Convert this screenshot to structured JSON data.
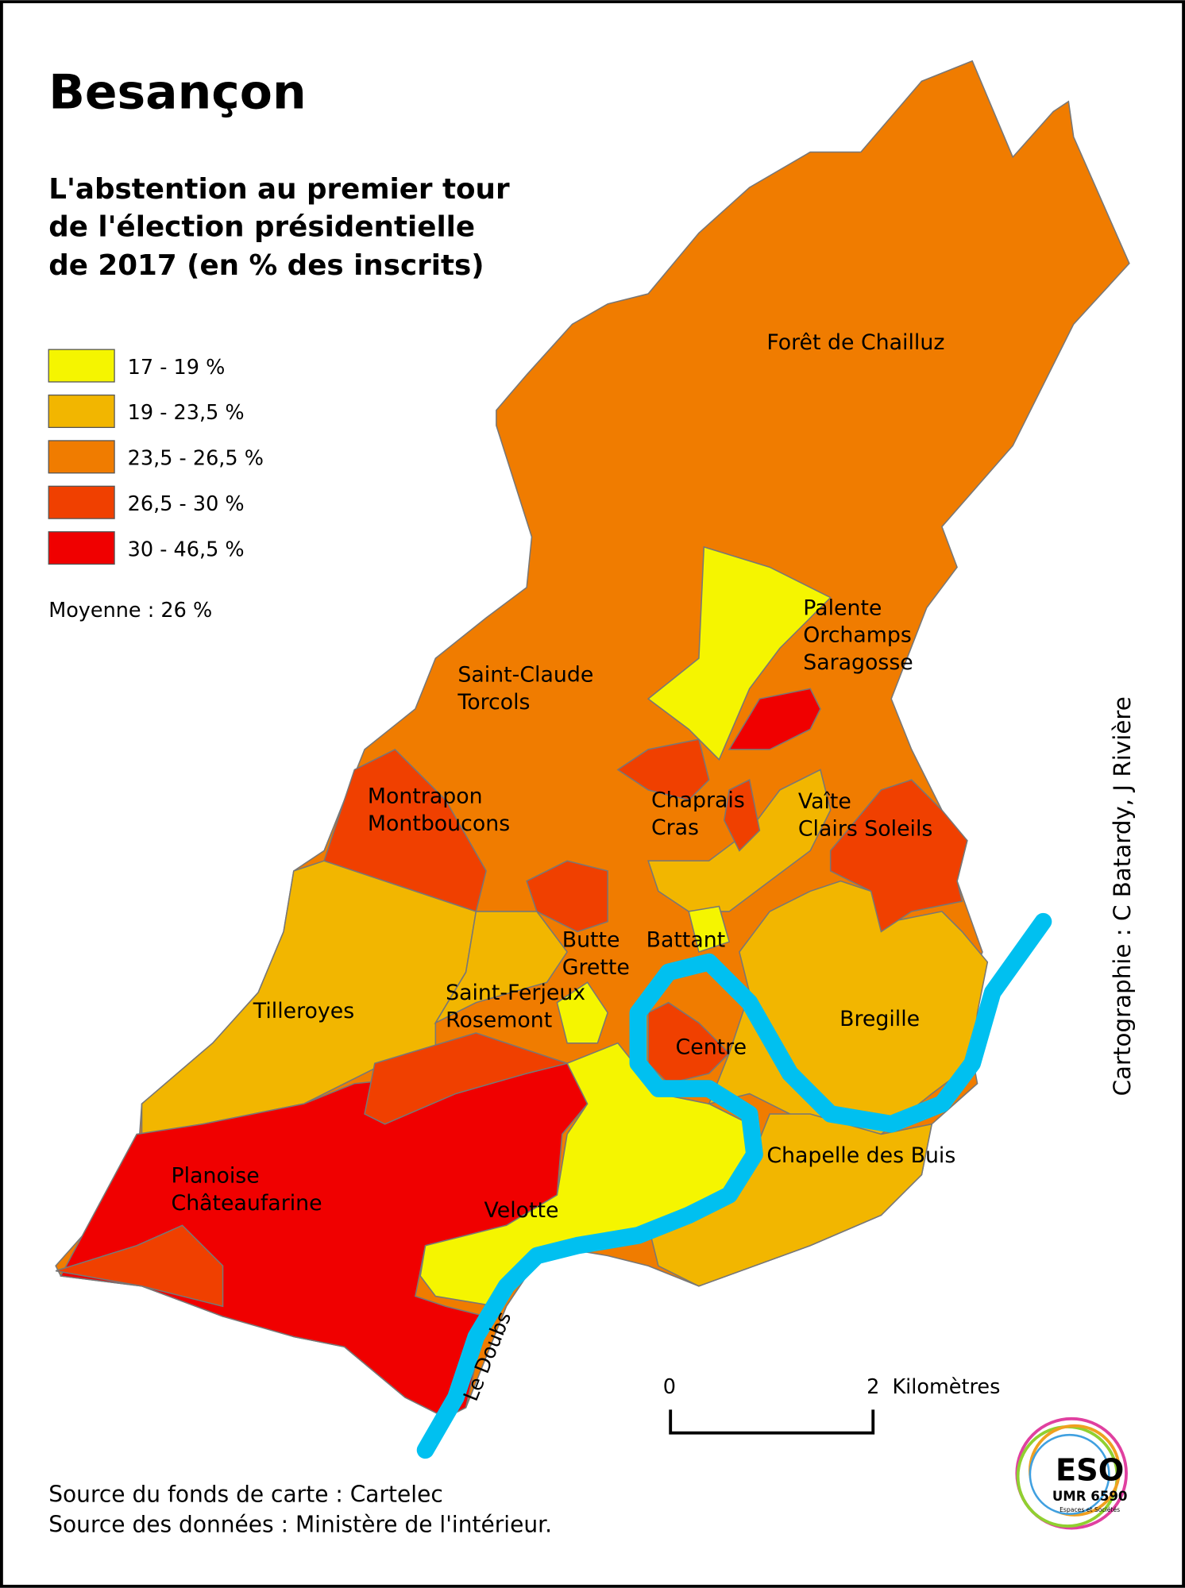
{
  "header": {
    "title": "Besançon",
    "subtitle": [
      "L'abstention au premier tour",
      "de l'élection présidentielle",
      "de 2017 (en % des inscrits)"
    ]
  },
  "legend": {
    "items": [
      {
        "label": "17 - 19 %",
        "color": "#f5f500"
      },
      {
        "label": "19 - 23,5 %",
        "color": "#f2b600"
      },
      {
        "label": "23,5 - 26,5 %",
        "color": "#f07c00"
      },
      {
        "label": "26,5 - 30 %",
        "color": "#f04000"
      },
      {
        "label": "30 - 46,5 %",
        "color": "#f00000"
      }
    ],
    "average": "Moyenne  : 26  %"
  },
  "districts": [
    {
      "lines": [
        "Forêt de Chailluz"
      ]
    },
    {
      "lines": [
        "Palente",
        "Orchamps",
        "Saragosse"
      ]
    },
    {
      "lines": [
        "Saint-Claude",
        "Torcols"
      ]
    },
    {
      "lines": [
        "Montrapon",
        "Montboucons"
      ]
    },
    {
      "lines": [
        "Chaprais",
        "Cras"
      ]
    },
    {
      "lines": [
        "Vaîte",
        "Clairs Soleils"
      ]
    },
    {
      "lines": [
        "Butte",
        "Grette"
      ]
    },
    {
      "lines": [
        "Battant"
      ]
    },
    {
      "lines": [
        "Saint-Ferjeux",
        "Rosemont"
      ]
    },
    {
      "lines": [
        "Tilleroyes"
      ]
    },
    {
      "lines": [
        "Bregille"
      ]
    },
    {
      "lines": [
        "Centre"
      ]
    },
    {
      "lines": [
        "Chapelle des Buis"
      ]
    },
    {
      "lines": [
        "Planoise",
        "Châteaufarine"
      ]
    },
    {
      "lines": [
        "Velotte"
      ]
    }
  ],
  "river": {
    "label": "Le Doubs",
    "color": "#00c0f0"
  },
  "scale": {
    "start": "0",
    "end": "2",
    "unit": "Kilomètres"
  },
  "credit": "Cartographie : C Batardy, J Rivière",
  "sources": [
    "Source du fonds de carte : Cartelec",
    "Source des données : Ministère de l'intérieur."
  ],
  "logo": {
    "name": "ESO",
    "unit": "UMR 6590",
    "lab": "Espaces et Sociétés"
  }
}
